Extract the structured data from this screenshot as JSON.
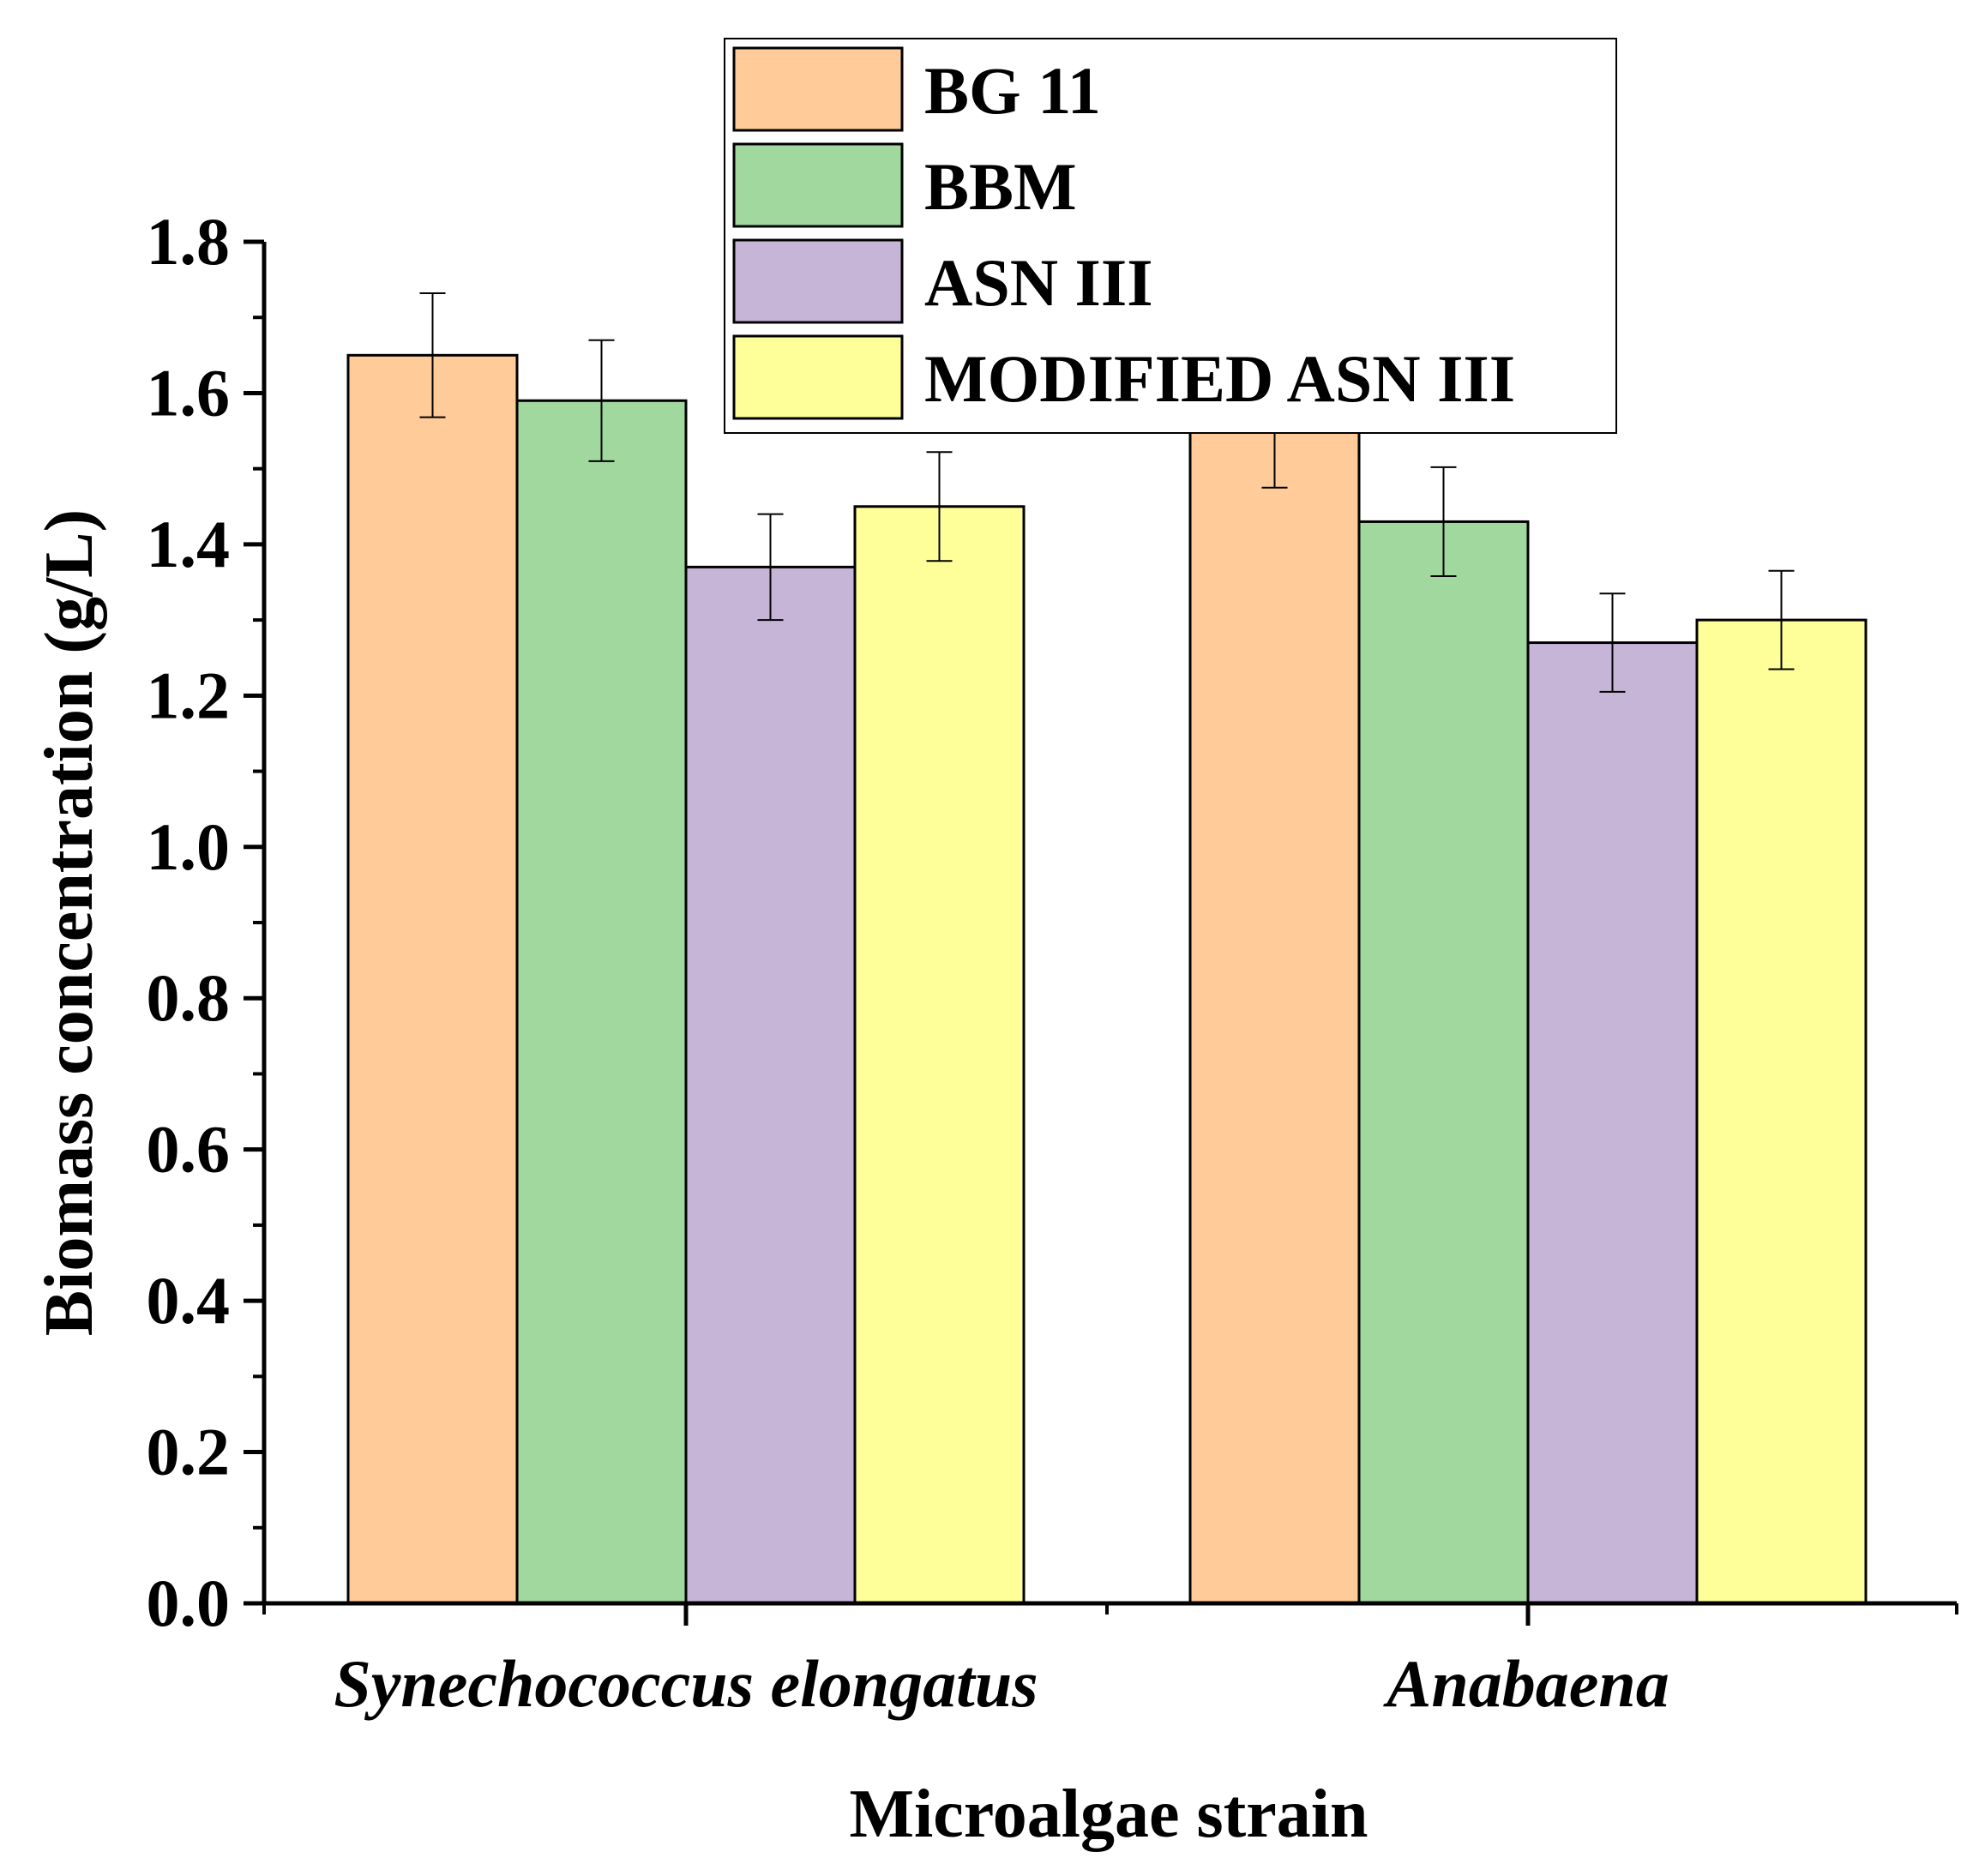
{
  "chart_data": {
    "type": "bar",
    "title": "",
    "xlabel": "Microalgae strain",
    "ylabel": "Biomass concentration (g/L)",
    "ylim": [
      0,
      1.8
    ],
    "yticks": [
      "0.0",
      "0.2",
      "0.4",
      "0.6",
      "0.8",
      "1.0",
      "1.2",
      "1.4",
      "1.6",
      "1.8"
    ],
    "categories": [
      "Synechococcus elongatus",
      "Anabaena"
    ],
    "legend_position": "top-center",
    "grid": false,
    "series": [
      {
        "name": "BG 11",
        "color": "#FFCC99",
        "values": [
          1.65,
          1.56
        ],
        "errors": [
          0.082,
          0.085
        ]
      },
      {
        "name": "BBM",
        "color": "#A0D89E",
        "values": [
          1.59,
          1.43
        ],
        "errors": [
          0.08,
          0.072
        ]
      },
      {
        "name": "ASN III",
        "color": "#C7B5D8",
        "values": [
          1.37,
          1.27
        ],
        "errors": [
          0.07,
          0.065
        ]
      },
      {
        "name": "MODIFIED ASN III",
        "color": "#FFFF99",
        "values": [
          1.45,
          1.3
        ],
        "errors": [
          0.072,
          0.065
        ]
      }
    ]
  }
}
